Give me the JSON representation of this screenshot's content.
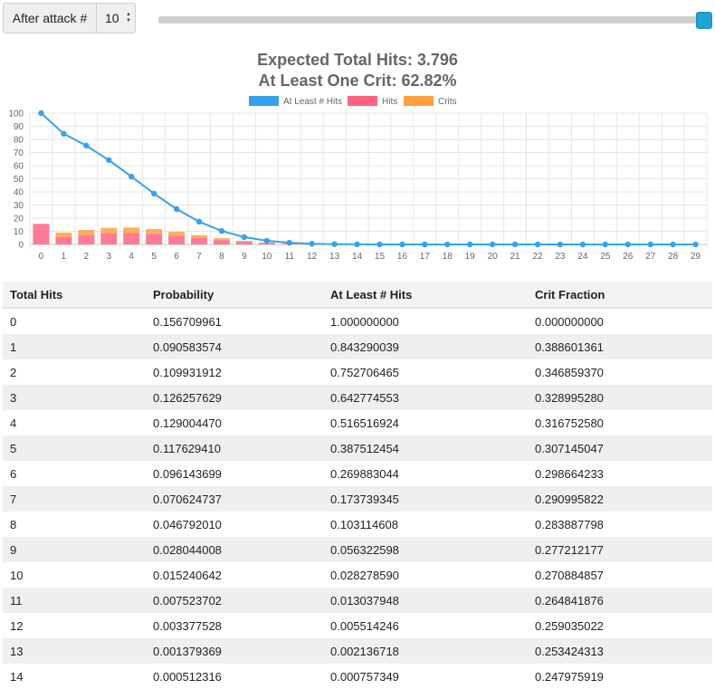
{
  "controls": {
    "attack_label": "After attack #",
    "attack_value": "10",
    "spin_up": "▲",
    "spin_down": "▼",
    "slider_value": 1.0
  },
  "chart": {
    "title_line1": "Expected Total Hits: 3.796",
    "title_line2": "At Least One Crit: 62.82%"
  },
  "chart_data": {
    "type": "bar",
    "categories": [
      "0",
      "1",
      "2",
      "3",
      "4",
      "5",
      "6",
      "7",
      "8",
      "9",
      "10",
      "11",
      "12",
      "13",
      "14",
      "15",
      "16",
      "17",
      "18",
      "19",
      "20",
      "21",
      "22",
      "23",
      "24",
      "25",
      "26",
      "27",
      "28",
      "29"
    ],
    "series": [
      {
        "name": "At Least # Hits",
        "type": "line",
        "color": "#36a2eb",
        "values": [
          100,
          84.33,
          75.27,
          64.28,
          51.65,
          38.75,
          26.99,
          17.37,
          10.31,
          5.63,
          2.83,
          1.3,
          0.55,
          0.21,
          0.08,
          0,
          0,
          0,
          0,
          0,
          0,
          0,
          0,
          0,
          0,
          0,
          0,
          0,
          0,
          0
        ]
      },
      {
        "name": "Hits",
        "type": "bar",
        "color": "#ff6384",
        "values": [
          15.67,
          5.54,
          7.18,
          8.47,
          8.81,
          8.15,
          6.74,
          5.01,
          3.35,
          2.03,
          1.11,
          0.55,
          0.25,
          0.1,
          0.04,
          0,
          0,
          0,
          0,
          0,
          0,
          0,
          0,
          0,
          0,
          0,
          0,
          0,
          0,
          0
        ]
      },
      {
        "name": "Crits",
        "type": "bar",
        "color": "#ff9f40",
        "values": [
          0,
          3.52,
          3.81,
          4.15,
          4.09,
          3.61,
          2.87,
          2.06,
          1.33,
          0.78,
          0.41,
          0.2,
          0.09,
          0.03,
          0.01,
          0,
          0,
          0,
          0,
          0,
          0,
          0,
          0,
          0,
          0,
          0,
          0,
          0,
          0,
          0
        ]
      }
    ],
    "stacked": true,
    "ylim": [
      0,
      100
    ],
    "yticks": [
      "0",
      "10",
      "20",
      "30",
      "40",
      "50",
      "60",
      "70",
      "80",
      "90",
      "100"
    ],
    "grid": true,
    "legend": "top-center"
  },
  "table": {
    "headers": [
      "Total Hits",
      "Probability",
      "At Least # Hits",
      "Crit Fraction"
    ],
    "rows": [
      [
        "0",
        "0.156709961",
        "1.000000000",
        "0.000000000"
      ],
      [
        "1",
        "0.090583574",
        "0.843290039",
        "0.388601361"
      ],
      [
        "2",
        "0.109931912",
        "0.752706465",
        "0.346859370"
      ],
      [
        "3",
        "0.126257629",
        "0.642774553",
        "0.328995280"
      ],
      [
        "4",
        "0.129004470",
        "0.516516924",
        "0.316752580"
      ],
      [
        "5",
        "0.117629410",
        "0.387512454",
        "0.307145047"
      ],
      [
        "6",
        "0.096143699",
        "0.269883044",
        "0.298664233"
      ],
      [
        "7",
        "0.070624737",
        "0.173739345",
        "0.290995822"
      ],
      [
        "8",
        "0.046792010",
        "0.103114608",
        "0.283887798"
      ],
      [
        "9",
        "0.028044008",
        "0.056322598",
        "0.277212177"
      ],
      [
        "10",
        "0.015240642",
        "0.028278590",
        "0.270884857"
      ],
      [
        "11",
        "0.007523702",
        "0.013037948",
        "0.264841876"
      ],
      [
        "12",
        "0.003377528",
        "0.005514246",
        "0.259035022"
      ],
      [
        "13",
        "0.001379369",
        "0.002136718",
        "0.253424313"
      ],
      [
        "14",
        "0.000512316",
        "0.000757349",
        "0.247975919"
      ]
    ]
  }
}
